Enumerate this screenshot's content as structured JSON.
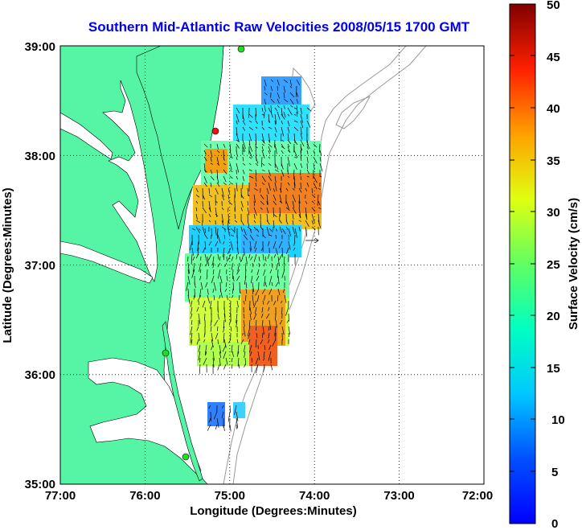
{
  "title": "Southern Mid-Atlantic Raw Velocities 2008/05/15 1700 GMT",
  "x_axis": {
    "label": "Longitude (Degrees:Minutes)",
    "ticks": [
      "77:00",
      "76:00",
      "75:00",
      "74:00",
      "73:00",
      "72:00"
    ]
  },
  "y_axis": {
    "label": "Latitude (Degrees:Minutes)",
    "ticks": [
      "39:00",
      "38:00",
      "37:00",
      "36:00",
      "35:00"
    ]
  },
  "colorbar": {
    "label": "Surface Velocity (cm/s)",
    "ticks": [
      "50",
      "45",
      "40",
      "35",
      "30",
      "25",
      "20",
      "15",
      "10",
      "5",
      "0"
    ],
    "range": [
      0,
      50
    ],
    "colormap": "jet"
  },
  "colors": {
    "land": "#55f5a5",
    "title": "#0000ee",
    "bathymetry": "#999999",
    "station_green": "#22dd22",
    "station_red": "#ee1111"
  },
  "map": {
    "lon_range": [
      -77,
      -72
    ],
    "lat_range": [
      35,
      39
    ],
    "grid": "dotted"
  }
}
